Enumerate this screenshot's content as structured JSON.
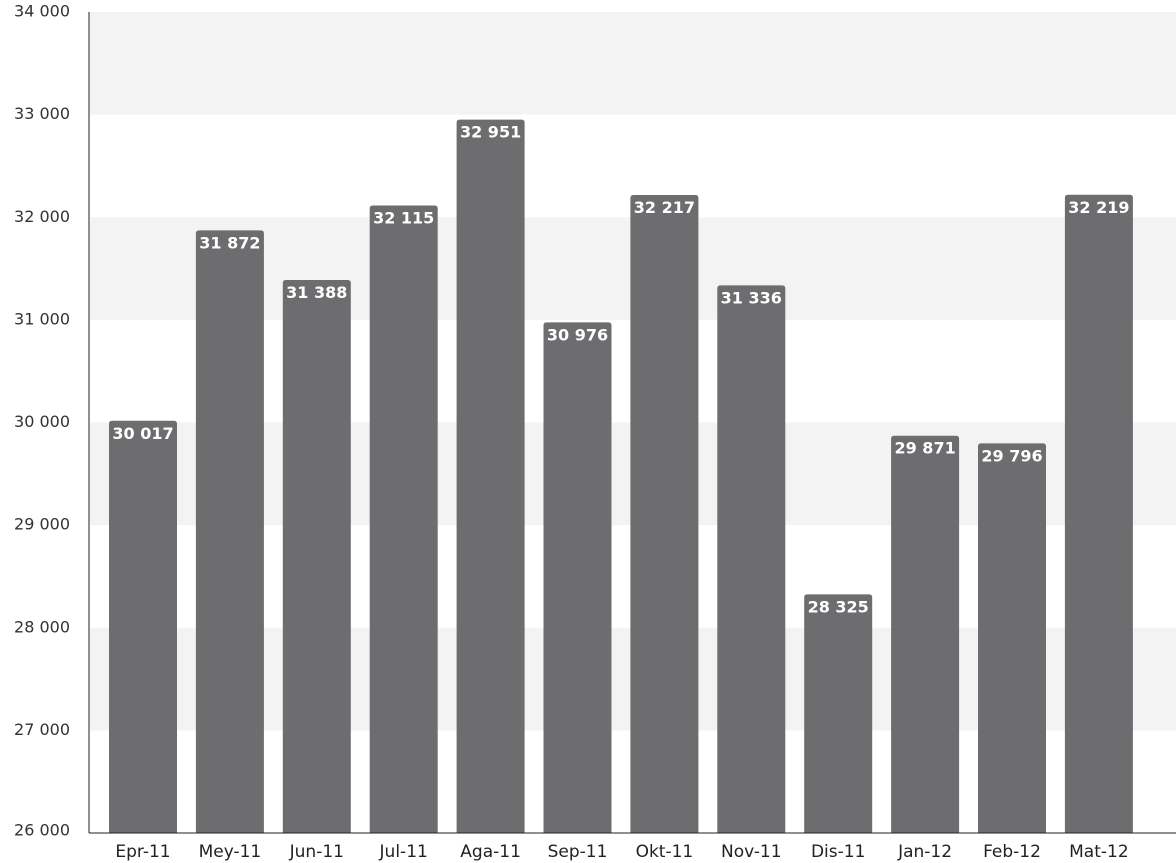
{
  "chart_data": {
    "type": "bar",
    "categories": [
      "Epr-11",
      "Mey-11",
      "Jun-11",
      "Jul-11",
      "Aga-11",
      "Sep-11",
      "Okt-11",
      "Nov-11",
      "Dis-11",
      "Jan-12",
      "Feb-12",
      "Mat-12"
    ],
    "values": [
      30017,
      31872,
      31388,
      32115,
      32951,
      30976,
      32217,
      31336,
      28325,
      29871,
      29796,
      32219
    ],
    "value_labels": [
      "30 017",
      "31 872",
      "31 388",
      "32 115",
      "32 951",
      "30 976",
      "32 217",
      "31 336",
      "28 325",
      "29 871",
      "29 796",
      "32 219"
    ],
    "ylim": [
      26000,
      34000
    ],
    "yticks": [
      26000,
      27000,
      28000,
      29000,
      30000,
      31000,
      32000,
      33000,
      34000
    ],
    "ytick_labels": [
      "26 000",
      "27 000",
      "28 000",
      "29 000",
      "30 000",
      "31 000",
      "32 000",
      "33 000",
      "34 000"
    ],
    "grid": "alternating horizontal bands",
    "legend": "none",
    "colors": {
      "bar": "#6d6d70",
      "band": "#f3f3f3",
      "axis": "#222222",
      "data_label": "#ffffff"
    }
  }
}
